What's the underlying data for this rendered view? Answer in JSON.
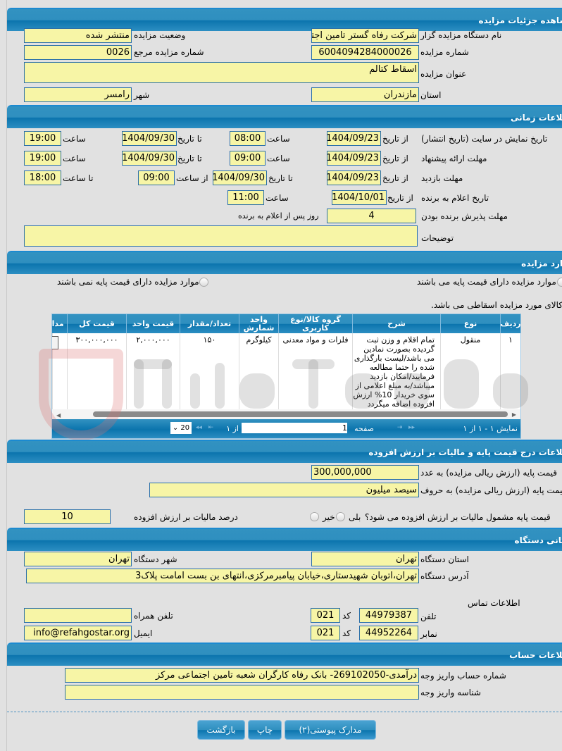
{
  "sections": {
    "details": "مشاهده جزئیات مزایده",
    "time": "اطلاعات زمانی",
    "items": "موارد مزایده",
    "price": "اطلاعات درج قیمت پایه و مالیات بر ارزش افزوده",
    "address": "نشانی دستگاه",
    "account": "اطلاعات حساب"
  },
  "details": {
    "org_label": "نام دستگاه مزایده گزار",
    "org": "شرکت رفاه گستر تامین اجتماعی",
    "status_label": "وضعیت مزایده",
    "status": "منتشر شده",
    "number_label": "شماره مزایده",
    "number": "6004094284000026",
    "ref_label": "شماره مزایده مرجع",
    "ref": "0026",
    "title_label": "عنوان مزایده",
    "title": "اسقاط کتالم",
    "province_label": "استان",
    "province": "مازندران",
    "city_label": "شهر",
    "city": "رامسر"
  },
  "time": {
    "from_date": "از تاریخ",
    "to_date": "تا تاریخ",
    "hour": "ساعت",
    "from_hour": "از ساعت",
    "to_hour": "تا ساعت",
    "publish_label": "تاریخ نمایش در سایت (تاریخ انتشار)",
    "publish_from": "1404/09/23",
    "publish_from_time": "08:00",
    "publish_to": "1404/09/30",
    "publish_to_time": "19:00",
    "offer_label": "مهلت ارائه پیشنهاد",
    "offer_from": "1404/09/23",
    "offer_from_time": "09:00",
    "offer_to": "1404/09/30",
    "offer_to_time": "19:00",
    "visit_label": "مهلت بازدید",
    "visit_from": "1404/09/23",
    "visit_to": "1404/09/30",
    "visit_from_time": "09:00",
    "visit_to_time": "18:00",
    "announce_label": "تاریخ اعلام به برنده",
    "announce_date": "1404/10/01",
    "announce_time": "11:00",
    "accept_label": "مهلت پذیرش برنده بودن",
    "accept_days": "4",
    "accept_suffix": "روز پس از اعلام به برنده",
    "desc_label": "توضیحات",
    "desc": ""
  },
  "items": {
    "radio_with_base": "موارد مزایده دارای قیمت پایه می باشند",
    "radio_without_base": "موارد مزایده دارای قیمت پایه نمی باشند",
    "note": "کالای مورد مزایده اسقاطی می باشد.",
    "columns": [
      "ردیف",
      "نوع",
      "شرح",
      "گروه کالا/نوع کاربری",
      "واحد شمارش",
      "تعداد/مقدار",
      "قیمت واحد",
      "قیمت کل",
      "مدارک"
    ],
    "rows": [
      [
        "۱",
        "منقول",
        "تمام اقلام و وزن ثبت گردیده بصورت نمادین می باشد/لیست بارگذاری شده را حتما مطالعه فرمایید/امکان بازدید میباشد/به مبلغ اعلامی از سوی خریدار 10% ارزش افزوده اضافه میگردد",
        "فلزات و مواد معدنی",
        "کیلوگرم",
        "۱۵۰",
        "۲,۰۰۰,۰۰۰",
        "۳۰۰,۰۰۰,۰۰۰"
      ]
    ],
    "pager": {
      "summary": "نمایش ۱ - ۱ از ۱",
      "page_label": "صفحه",
      "page": "1",
      "of": "از ۱",
      "page_size": "20"
    }
  },
  "price": {
    "number_label": "قیمت پایه (ارزش ریالی مزایده) به عدد",
    "number": "300,000,000",
    "words_label": "قیمت پایه (ارزش ریالی مزایده) به حروف",
    "words": "سیصد میلیون",
    "vat_question": "قیمت پایه مشمول مالیات بر ارزش افزوده می شود؟",
    "yes": "بلی",
    "no": "خیر",
    "vat_percent_label": "درصد مالیات بر ارزش افزوده",
    "vat_percent": "10"
  },
  "address": {
    "province_label": "استان دستگاه",
    "province": "تهران",
    "city_label": "شهر دستگاه",
    "city": "تهران",
    "address_label": "آدرس دستگاه",
    "address": "تهران،اتوبان شهیدستاری،خیابان پیامبرمرکزی،انتهای بن بست امامت پلاک3",
    "contact_label": "اطلاعات تماس",
    "phone_label": "تلفن",
    "phone": "44979387",
    "code_label": "کد",
    "phone_code": "021",
    "mobile_label": "تلفن همراه",
    "mobile": "",
    "fax_label": "نمابر",
    "fax": "44952264",
    "fax_code": "021",
    "email_label": "ایمیل",
    "email": "info@refahgostar.org"
  },
  "account": {
    "account_label": "شماره حساب واریز وجه",
    "account": "درآمدی-269102050- بانک رفاه کارگران شعبه تامین اجتماعی مرکز",
    "id_label": "شناسه واریز وجه",
    "id": ""
  },
  "buttons": {
    "attachments": "مدارک پیوستی(۲)",
    "print": "چاپ",
    "back": "بازگشت"
  },
  "watermark": "AriaTender.net",
  "colors": {
    "header": "#2f8fbf",
    "field": "#f7f5a6",
    "field_border": "#2a6fa8"
  }
}
